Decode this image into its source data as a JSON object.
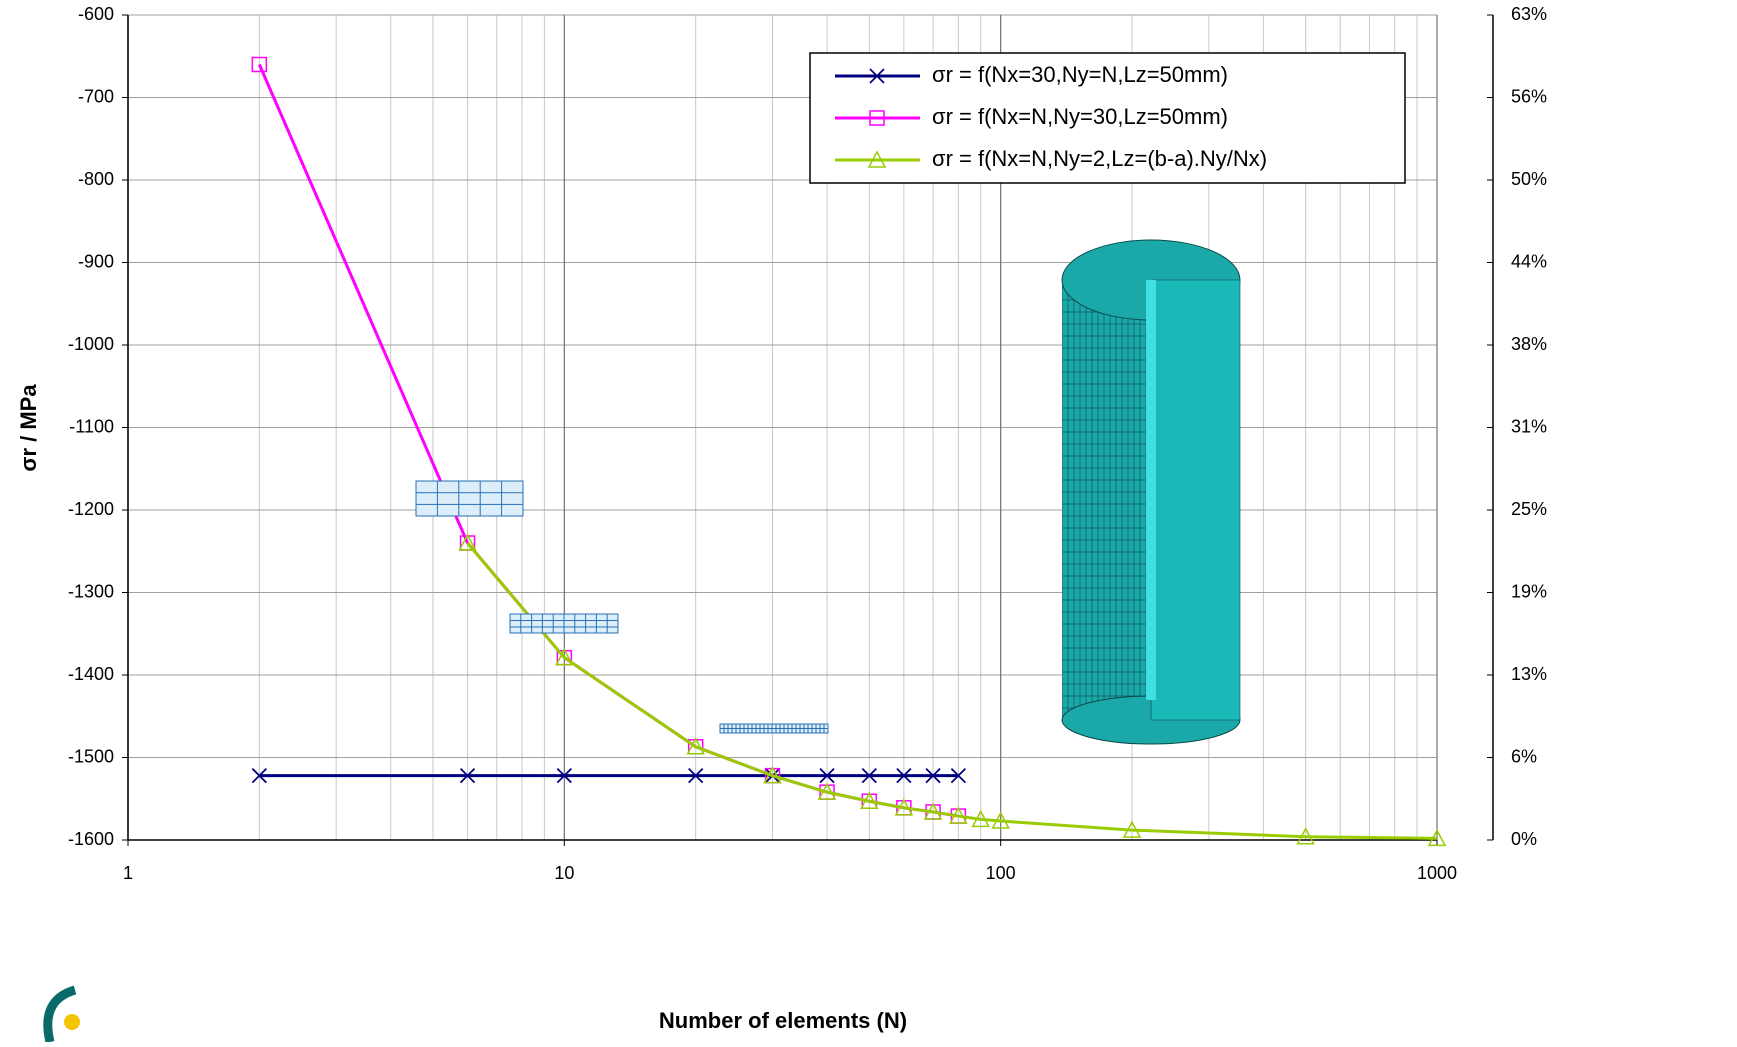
{
  "chart_data": {
    "type": "line",
    "x_label": "Number of elements (N)",
    "y_label": "σr / MPa",
    "xlim": [
      1,
      1000
    ],
    "xticks": [
      1,
      10,
      100,
      1000
    ],
    "log_x": true,
    "ylim": [
      -1600,
      -600
    ],
    "yticks": [
      -600,
      -700,
      -800,
      -900,
      -1000,
      -1100,
      -1200,
      -1300,
      -1400,
      -1500,
      -1600
    ],
    "y2lim": [
      0,
      62.5
    ],
    "y2ticks": [
      {
        "value": 0,
        "label": "0%"
      },
      {
        "value": 6.25,
        "label": "6%"
      },
      {
        "value": 12.5,
        "label": "13%"
      },
      {
        "value": 18.75,
        "label": "19%"
      },
      {
        "value": 25,
        "label": "25%"
      },
      {
        "value": 31.25,
        "label": "31%"
      },
      {
        "value": 37.5,
        "label": "38%"
      },
      {
        "value": 43.75,
        "label": "44%"
      },
      {
        "value": 50,
        "label": "50%"
      },
      {
        "value": 56.25,
        "label": "56%"
      },
      {
        "value": 62.5,
        "label": "63%"
      }
    ],
    "grid": true,
    "minor_grid": true,
    "legend": "upper right",
    "series": [
      {
        "name": "σr = f(Nx=30,Ny=N,Lz=50mm)",
        "color": "#000080",
        "marker": "x",
        "x": [
          2,
          6,
          10,
          20,
          30,
          40,
          50,
          60,
          70,
          80
        ],
        "values": [
          -1522,
          -1522,
          -1522,
          -1522,
          -1522,
          -1522,
          -1522,
          -1522,
          -1522,
          -1522
        ]
      },
      {
        "name": "σr = f(Nx=N,Ny=30,Lz=50mm)",
        "color": "#ff00ff",
        "marker": "square",
        "x": [
          2,
          6,
          10,
          20,
          30,
          40,
          50,
          60,
          70,
          80
        ],
        "values": [
          -660,
          -1240,
          -1379,
          -1487,
          -1522,
          -1542,
          -1553,
          -1561,
          -1566,
          -1571
        ]
      },
      {
        "name": "σr = f(Nx=N,Ny=2,Lz=(b-a).Ny/Nx)",
        "color": "#99cc00",
        "marker": "triangle",
        "x": [
          6,
          10,
          20,
          30,
          40,
          50,
          60,
          70,
          80,
          90,
          100,
          200,
          500,
          1000
        ],
        "values": [
          -1240,
          -1379,
          -1487,
          -1522,
          -1542,
          -1553,
          -1561,
          -1566,
          -1571,
          -1575,
          -1577,
          -1588,
          -1596,
          -1598
        ]
      }
    ]
  }
}
